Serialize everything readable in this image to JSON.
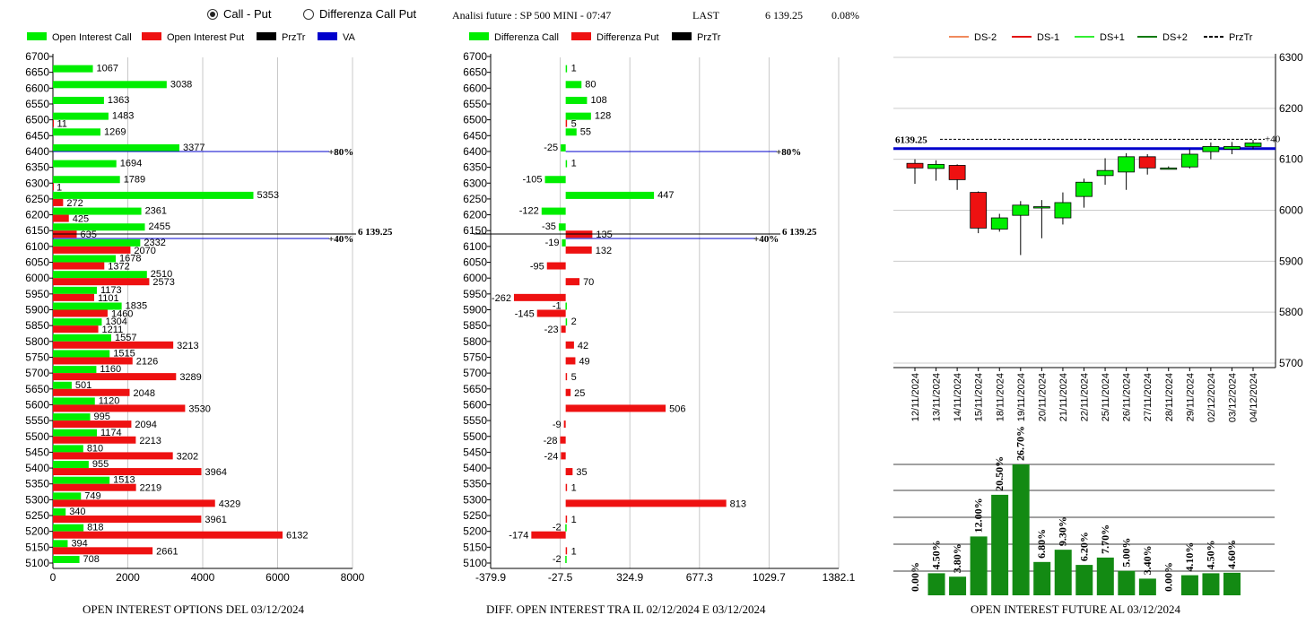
{
  "controls": {
    "radio1": "Call - Put",
    "radio2": "Differenza Call Put",
    "title": "Analisi future : SP 500 MINI - 07:47",
    "last_label": "LAST",
    "last_value": "6 139.25",
    "last_pct": "0.08%"
  },
  "colors": {
    "call": "#00ee00",
    "put": "#ee1111",
    "przt": "#000000",
    "va": "#0000cc",
    "dark_green": "#138a13"
  },
  "captions": {
    "c1": "OPEN INTEREST OPTIONS DEL 03/12/2024",
    "c2": "DIFF. OPEN INTEREST TRA IL 02/12/2024 E 03/12/2024",
    "c3": "OPEN INTEREST FUTURE AL 03/12/2024"
  },
  "chart_data": [
    {
      "type": "bar",
      "orientation": "horizontal",
      "legend": [
        "Open Interest Call",
        "Open Interest Put",
        "PrzTr",
        "VA"
      ],
      "strikes": [
        6700,
        6650,
        6600,
        6550,
        6500,
        6450,
        6400,
        6350,
        6300,
        6250,
        6200,
        6150,
        6100,
        6050,
        6000,
        5950,
        5900,
        5850,
        5800,
        5750,
        5700,
        5650,
        5600,
        5550,
        5500,
        5450,
        5400,
        5350,
        5300,
        5250,
        5200,
        5150,
        5100
      ],
      "call": [
        null,
        1067,
        3038,
        1363,
        1483,
        1269,
        3377,
        1694,
        1789,
        5353,
        2361,
        2455,
        2332,
        1678,
        2510,
        1173,
        1835,
        1304,
        1557,
        1515,
        1160,
        501,
        1120,
        995,
        1174,
        810,
        955,
        1513,
        749,
        340,
        818,
        394,
        708
      ],
      "put": [
        null,
        null,
        null,
        null,
        11,
        null,
        null,
        null,
        1,
        272,
        425,
        635,
        2070,
        1372,
        2573,
        1101,
        1460,
        1211,
        3213,
        2126,
        3289,
        2048,
        3530,
        2094,
        2213,
        3202,
        3964,
        2219,
        4329,
        3961,
        6132,
        2661,
        null
      ],
      "xticks": [
        "0",
        "2000",
        "4000",
        "6000",
        "8000"
      ],
      "xlim": [
        0,
        8000
      ],
      "lines": [
        {
          "label": "+80%",
          "strike": 6400
        },
        {
          "label": "6 139.25",
          "strike": 6139.25
        },
        {
          "label": "+40%",
          "strike": 6125
        }
      ]
    },
    {
      "type": "bar",
      "orientation": "horizontal",
      "legend": [
        "Differenza Call",
        "Differenza Put",
        "PrzTr"
      ],
      "call_diff": [
        null,
        1,
        80,
        108,
        128,
        55,
        -25,
        1,
        -105,
        447,
        -122,
        -35,
        -19,
        null,
        null,
        null,
        -1,
        2,
        null,
        null,
        null,
        null,
        null,
        null,
        null,
        null,
        null,
        null,
        null,
        null,
        -2,
        null,
        -2
      ],
      "put_diff": [
        null,
        null,
        null,
        null,
        5,
        null,
        null,
        null,
        null,
        null,
        null,
        135,
        132,
        -95,
        70,
        -262,
        -145,
        -23,
        42,
        49,
        5,
        25,
        506,
        -9,
        -28,
        -24,
        35,
        1,
        813,
        1,
        -174,
        1,
        null
      ],
      "xticks": [
        "-379.9",
        "-27.5",
        "324.9",
        "677.3",
        "1029.7",
        "1382.1"
      ],
      "xlim": [
        -379.9,
        1382.1
      ],
      "lines": [
        {
          "label": "+80%",
          "strike": 6400
        },
        {
          "label": "6 139.25",
          "strike": 6139.25
        },
        {
          "label": "+40%",
          "strike": 6125
        }
      ]
    },
    {
      "type": "candlestick",
      "legend": [
        "DS-2",
        "DS-1",
        "DS+1",
        "DS+2",
        "PrzTr"
      ],
      "dates": [
        "12/11/2024",
        "13/11/2024",
        "14/11/2024",
        "15/11/2024",
        "18/11/2024",
        "19/11/2024",
        "20/11/2024",
        "21/11/2024",
        "22/11/2024",
        "25/11/2024",
        "26/11/2024",
        "27/11/2024",
        "28/11/2024",
        "29/11/2024",
        "02/12/2024",
        "03/12/2024",
        "04/12/2024"
      ],
      "open": [
        6092,
        6082,
        6088,
        6035,
        5963,
        5990,
        6005,
        5985,
        6027,
        6068,
        6075,
        6105,
        6082,
        6085,
        6115,
        6120,
        6125
      ],
      "close": [
        6083,
        6090,
        6060,
        5965,
        5985,
        6010,
        6007,
        6015,
        6055,
        6078,
        6105,
        6083,
        6083,
        6110,
        6125,
        6125,
        6132
      ],
      "high": [
        6100,
        6098,
        6090,
        6037,
        5993,
        6018,
        6020,
        6035,
        6062,
        6102,
        6112,
        6110,
        6086,
        6120,
        6133,
        6134,
        6138
      ],
      "low": [
        6052,
        6058,
        6040,
        5955,
        5958,
        5912,
        5945,
        5972,
        6005,
        6050,
        6040,
        6070,
        6080,
        6082,
        6100,
        6110,
        6120
      ],
      "yticks": [
        "6300",
        "6200",
        "6100",
        "6000",
        "5900",
        "5800",
        "5700"
      ],
      "ylim": [
        5700,
        6300
      ],
      "price_label": "6139.25",
      "price": 6139.25,
      "va_level": 6121,
      "right_label": "+40"
    },
    {
      "type": "bar",
      "values": [
        0.0,
        4.5,
        3.8,
        12.0,
        20.5,
        26.7,
        6.8,
        9.3,
        6.2,
        7.7,
        5.0,
        3.4,
        0.0,
        4.1,
        4.5,
        4.6
      ],
      "labels": [
        "0.00%",
        "4.50%",
        "3.80%",
        "12.00%",
        "20.50%",
        "26.70%",
        "6.80%",
        "9.30%",
        "6.20%",
        "7.70%",
        "5.00%",
        "3.40%",
        "0.00%",
        "4.10%",
        "4.50%",
        "4.60%"
      ]
    }
  ]
}
